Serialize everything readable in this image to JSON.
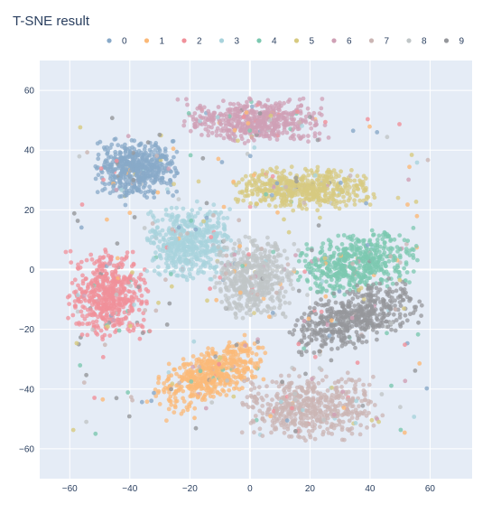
{
  "chart_data": {
    "type": "scatter",
    "title": "T-SNE result",
    "xlabel": "",
    "ylabel": "",
    "xlim": [
      -70,
      74
    ],
    "ylim": [
      -70,
      70
    ],
    "x_ticks": [
      -60,
      -40,
      -20,
      0,
      20,
      40,
      60
    ],
    "y_ticks": [
      -60,
      -40,
      -20,
      0,
      20,
      40,
      60
    ],
    "grid": true,
    "legend_position": "top-right",
    "series": [
      {
        "name": "0",
        "color": "#88a9c8",
        "center": [
          -38,
          34
        ],
        "spread": [
          11,
          8
        ]
      },
      {
        "name": "1",
        "color": "#fbb978",
        "center": [
          -13,
          -35
        ],
        "spread": [
          16,
          7
        ],
        "angle": 25
      },
      {
        "name": "2",
        "color": "#f0909a",
        "center": [
          -47,
          -8
        ],
        "spread": [
          11,
          12
        ]
      },
      {
        "name": "3",
        "color": "#a8d3dc",
        "center": [
          -20,
          9
        ],
        "spread": [
          12,
          10
        ]
      },
      {
        "name": "4",
        "color": "#7cc8b0",
        "center": [
          35,
          2
        ],
        "spread": [
          17,
          8
        ],
        "angle": 10
      },
      {
        "name": "5",
        "color": "#d7ca80",
        "center": [
          18,
          27
        ],
        "spread": [
          19,
          6
        ]
      },
      {
        "name": "6",
        "color": "#cfa0b5",
        "center": [
          2,
          50
        ],
        "spread": [
          20,
          6
        ]
      },
      {
        "name": "7",
        "color": "#cbb6b4",
        "center": [
          20,
          -46
        ],
        "spread": [
          19,
          9
        ]
      },
      {
        "name": "8",
        "color": "#c0c6c7",
        "center": [
          1,
          -3
        ],
        "spread": [
          11,
          11
        ]
      },
      {
        "name": "9",
        "color": "#95979b",
        "center": [
          35,
          -16
        ],
        "spread": [
          18,
          8
        ],
        "angle": 20
      }
    ]
  }
}
